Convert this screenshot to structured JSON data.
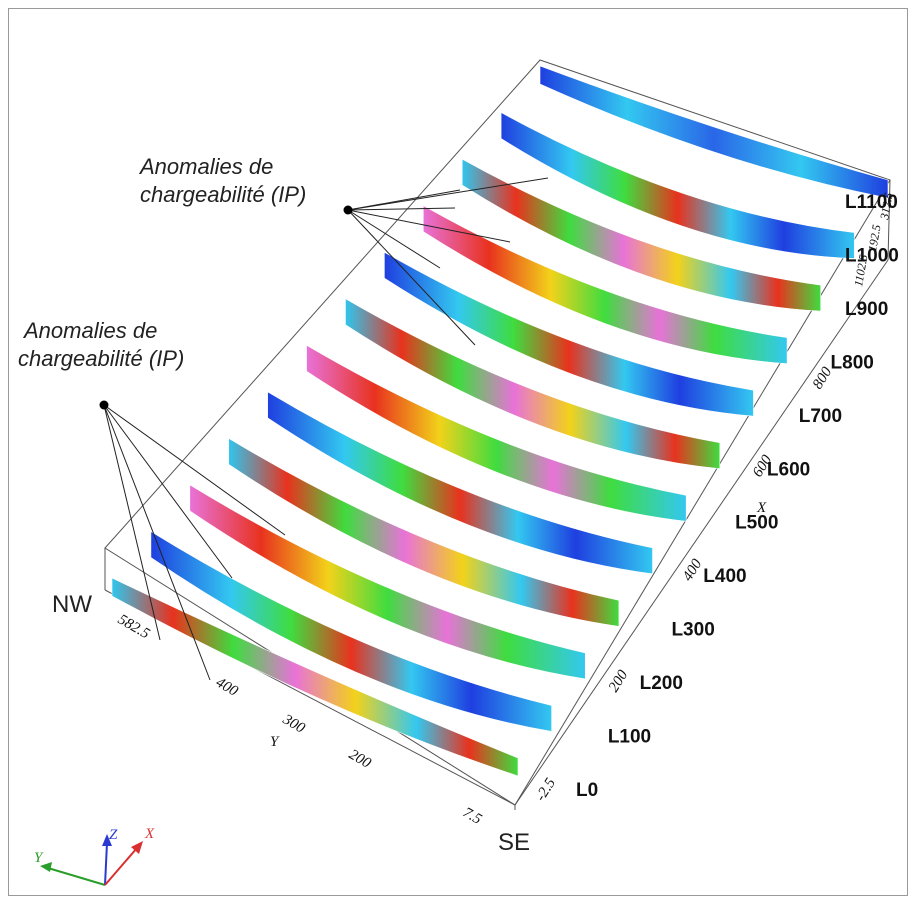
{
  "annotations": {
    "top_line1": "Anomalies de",
    "top_line2": "chargeabilité (IP)",
    "left_line1": "Anomalies de",
    "left_line2": "chargeabilité (IP)"
  },
  "directions": {
    "nw": "NW",
    "se": "SE"
  },
  "lines": [
    "L0",
    "L100",
    "L200",
    "L300",
    "L400",
    "L500",
    "L600",
    "L700",
    "L800",
    "L900",
    "L1000",
    "L1100"
  ],
  "x_axis": {
    "name": "X",
    "ticks": [
      "-2.5",
      "200",
      "400",
      "600",
      "800"
    ]
  },
  "y_axis": {
    "name": "Y",
    "ticks": [
      "582.5",
      "400",
      "300",
      "200",
      "7.5"
    ]
  },
  "z_axis": {
    "ticks": [
      "1102.5",
      "312.5",
      "192.5"
    ]
  },
  "triad": {
    "x": "X",
    "y": "Y",
    "z": "Z"
  },
  "colors": {
    "low": "#1f3fe0",
    "mid_low": "#33c8f0",
    "mid": "#3fdc3f",
    "mid_high": "#f2d21a",
    "high": "#e8321e",
    "very_high": "#e872d8"
  }
}
